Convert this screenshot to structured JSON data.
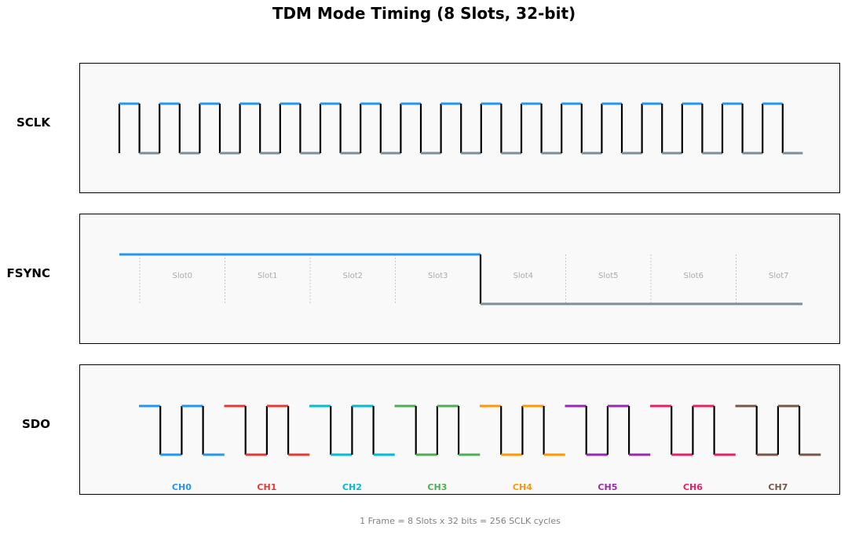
{
  "title": "TDM Mode Timing (8 Slots, 32-bit)",
  "rows": {
    "sclk": "SCLK",
    "fsync": "FSYNC",
    "sdo": "SDO"
  },
  "slots": [
    "Slot0",
    "Slot1",
    "Slot2",
    "Slot3",
    "Slot4",
    "Slot5",
    "Slot6",
    "Slot7"
  ],
  "channels": [
    {
      "label": "CH0",
      "color": "#2196F3"
    },
    {
      "label": "CH1",
      "color": "#E53935"
    },
    {
      "label": "CH2",
      "color": "#00BCD4"
    },
    {
      "label": "CH3",
      "color": "#4CAF50"
    },
    {
      "label": "CH4",
      "color": "#FF9800"
    },
    {
      "label": "CH5",
      "color": "#9C27B0"
    },
    {
      "label": "CH6",
      "color": "#E91E63"
    },
    {
      "label": "CH7",
      "color": "#795548"
    }
  ],
  "colors": {
    "high": "#2196F3",
    "low": "#78909C",
    "edge": "#000000",
    "slot_text": "#AAAAAA"
  },
  "footer": "1 Frame = 8 Slots x 32 bits = 256 SCLK cycles"
}
